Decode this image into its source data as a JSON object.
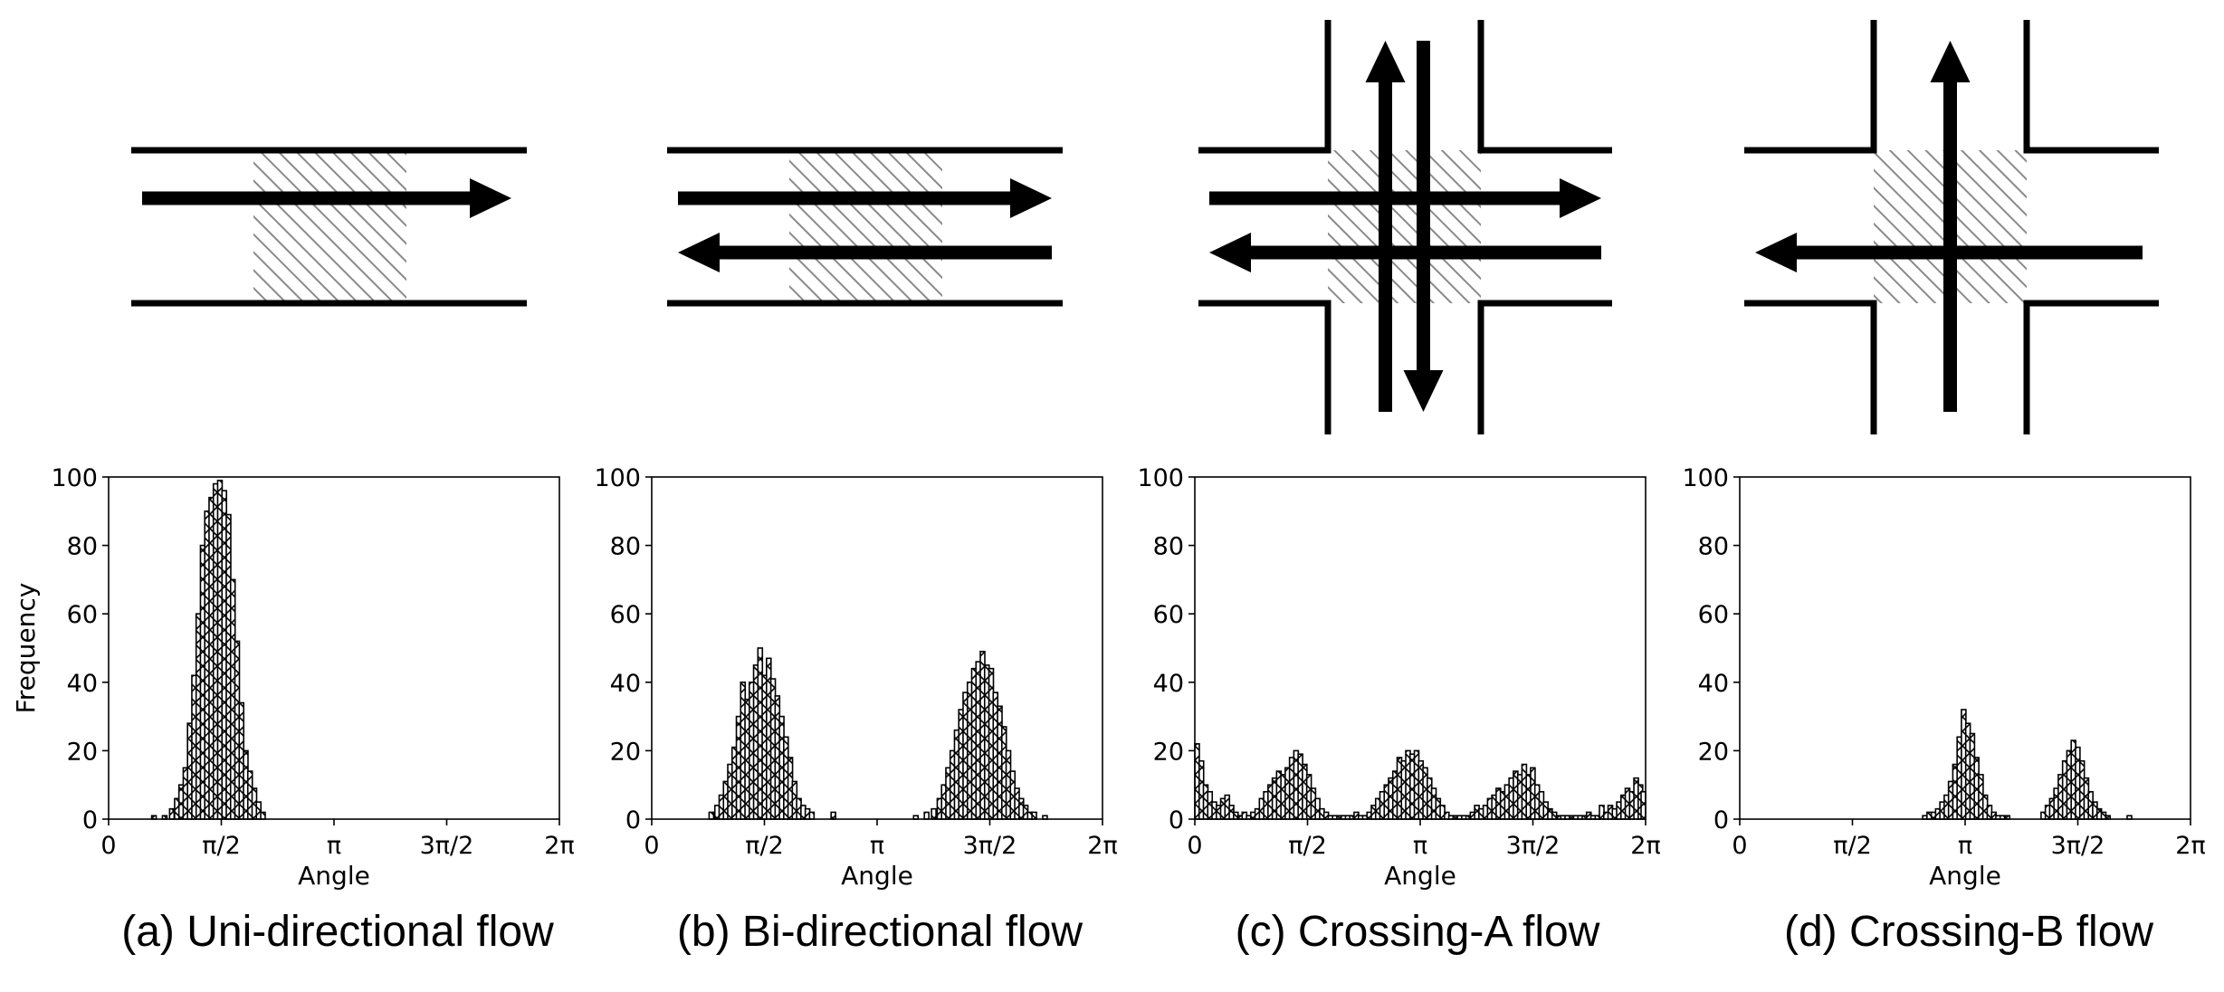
{
  "captions": [
    "(a) Uni-directional flow",
    "(b) Bi-directional flow",
    "(c) Crossing-A flow",
    "(d) Crossing-B flow"
  ],
  "diagrams": [
    {
      "type": "corridor",
      "arrows": [
        "right"
      ]
    },
    {
      "type": "corridor",
      "arrows": [
        "right",
        "left"
      ]
    },
    {
      "type": "crossing",
      "arrows": [
        "right",
        "left",
        "up",
        "down"
      ]
    },
    {
      "type": "crossing",
      "arrows": [
        "left",
        "up"
      ]
    }
  ],
  "chart_data": [
    {
      "type": "histogram",
      "title": "",
      "xlabel": "Angle",
      "ylabel": "Frequency",
      "xlim": [
        0,
        6.2832
      ],
      "ylim": [
        0,
        100
      ],
      "xticks": [
        "0",
        "π/2",
        "π",
        "3π/2",
        "2π"
      ],
      "yticks": [
        "0",
        "20",
        "40",
        "60",
        "80",
        "100"
      ],
      "bin_width": 0.0628,
      "bins": [
        {
          "x": 0.6,
          "y": 1
        },
        {
          "x": 0.75,
          "y": 1
        },
        {
          "x": 0.85,
          "y": 3
        },
        {
          "x": 0.92,
          "y": 6
        },
        {
          "x": 0.98,
          "y": 10
        },
        {
          "x": 1.04,
          "y": 15
        },
        {
          "x": 1.1,
          "y": 28
        },
        {
          "x": 1.16,
          "y": 42
        },
        {
          "x": 1.22,
          "y": 60
        },
        {
          "x": 1.28,
          "y": 80
        },
        {
          "x": 1.34,
          "y": 90
        },
        {
          "x": 1.4,
          "y": 94
        },
        {
          "x": 1.46,
          "y": 98
        },
        {
          "x": 1.52,
          "y": 99
        },
        {
          "x": 1.58,
          "y": 96
        },
        {
          "x": 1.64,
          "y": 89
        },
        {
          "x": 1.7,
          "y": 70
        },
        {
          "x": 1.76,
          "y": 52
        },
        {
          "x": 1.82,
          "y": 34
        },
        {
          "x": 1.88,
          "y": 20
        },
        {
          "x": 1.94,
          "y": 14
        },
        {
          "x": 2.0,
          "y": 9
        },
        {
          "x": 2.06,
          "y": 5
        },
        {
          "x": 2.12,
          "y": 2
        }
      ]
    },
    {
      "type": "histogram",
      "title": "",
      "xlabel": "Angle",
      "ylabel": "",
      "xlim": [
        0,
        6.2832
      ],
      "ylim": [
        0,
        100
      ],
      "xticks": [
        "0",
        "π/2",
        "π",
        "3π/2",
        "2π"
      ],
      "yticks": [
        "0",
        "20",
        "40",
        "60",
        "80",
        "100"
      ],
      "bin_width": 0.0628,
      "bins": [
        {
          "x": 0.8,
          "y": 2
        },
        {
          "x": 0.88,
          "y": 4
        },
        {
          "x": 0.94,
          "y": 7
        },
        {
          "x": 1.0,
          "y": 11
        },
        {
          "x": 1.06,
          "y": 16
        },
        {
          "x": 1.12,
          "y": 21
        },
        {
          "x": 1.18,
          "y": 30
        },
        {
          "x": 1.24,
          "y": 40
        },
        {
          "x": 1.3,
          "y": 35
        },
        {
          "x": 1.36,
          "y": 40
        },
        {
          "x": 1.42,
          "y": 45
        },
        {
          "x": 1.48,
          "y": 50
        },
        {
          "x": 1.54,
          "y": 42
        },
        {
          "x": 1.6,
          "y": 47
        },
        {
          "x": 1.66,
          "y": 41
        },
        {
          "x": 1.72,
          "y": 36
        },
        {
          "x": 1.78,
          "y": 30
        },
        {
          "x": 1.84,
          "y": 24
        },
        {
          "x": 1.9,
          "y": 18
        },
        {
          "x": 1.96,
          "y": 11
        },
        {
          "x": 2.02,
          "y": 6
        },
        {
          "x": 2.08,
          "y": 4
        },
        {
          "x": 2.14,
          "y": 3
        },
        {
          "x": 2.2,
          "y": 2
        },
        {
          "x": 2.5,
          "y": 2
        },
        {
          "x": 3.65,
          "y": 1
        },
        {
          "x": 3.8,
          "y": 2
        },
        {
          "x": 3.9,
          "y": 3
        },
        {
          "x": 3.98,
          "y": 6
        },
        {
          "x": 4.04,
          "y": 10
        },
        {
          "x": 4.1,
          "y": 15
        },
        {
          "x": 4.16,
          "y": 20
        },
        {
          "x": 4.22,
          "y": 26
        },
        {
          "x": 4.28,
          "y": 32
        },
        {
          "x": 4.34,
          "y": 37
        },
        {
          "x": 4.4,
          "y": 40
        },
        {
          "x": 4.46,
          "y": 44
        },
        {
          "x": 4.52,
          "y": 46
        },
        {
          "x": 4.58,
          "y": 49
        },
        {
          "x": 4.64,
          "y": 45
        },
        {
          "x": 4.7,
          "y": 44
        },
        {
          "x": 4.76,
          "y": 37
        },
        {
          "x": 4.82,
          "y": 33
        },
        {
          "x": 4.88,
          "y": 27
        },
        {
          "x": 4.94,
          "y": 20
        },
        {
          "x": 5.0,
          "y": 14
        },
        {
          "x": 5.06,
          "y": 9
        },
        {
          "x": 5.12,
          "y": 6
        },
        {
          "x": 5.18,
          "y": 4
        },
        {
          "x": 5.24,
          "y": 2
        },
        {
          "x": 5.3,
          "y": 2
        },
        {
          "x": 5.45,
          "y": 1
        }
      ]
    },
    {
      "type": "histogram",
      "title": "",
      "xlabel": "Angle",
      "ylabel": "",
      "xlim": [
        0,
        6.2832
      ],
      "ylim": [
        0,
        100
      ],
      "xticks": [
        "0",
        "π/2",
        "π",
        "3π/2",
        "2π"
      ],
      "yticks": [
        "0",
        "20",
        "40",
        "60",
        "80",
        "100"
      ],
      "bin_width": 0.0628,
      "bins": [
        {
          "x": 0.0,
          "y": 22
        },
        {
          "x": 0.06,
          "y": 17
        },
        {
          "x": 0.12,
          "y": 10
        },
        {
          "x": 0.18,
          "y": 8
        },
        {
          "x": 0.24,
          "y": 5
        },
        {
          "x": 0.3,
          "y": 4
        },
        {
          "x": 0.36,
          "y": 6
        },
        {
          "x": 0.42,
          "y": 7
        },
        {
          "x": 0.48,
          "y": 4
        },
        {
          "x": 0.54,
          "y": 2
        },
        {
          "x": 0.6,
          "y": 1
        },
        {
          "x": 0.66,
          "y": 2
        },
        {
          "x": 0.72,
          "y": 1
        },
        {
          "x": 0.78,
          "y": 2
        },
        {
          "x": 0.84,
          "y": 3
        },
        {
          "x": 0.9,
          "y": 6
        },
        {
          "x": 0.96,
          "y": 8
        },
        {
          "x": 1.02,
          "y": 10
        },
        {
          "x": 1.08,
          "y": 12
        },
        {
          "x": 1.14,
          "y": 14
        },
        {
          "x": 1.2,
          "y": 13
        },
        {
          "x": 1.26,
          "y": 15
        },
        {
          "x": 1.32,
          "y": 18
        },
        {
          "x": 1.38,
          "y": 20
        },
        {
          "x": 1.44,
          "y": 19
        },
        {
          "x": 1.5,
          "y": 16
        },
        {
          "x": 1.56,
          "y": 13
        },
        {
          "x": 1.62,
          "y": 9
        },
        {
          "x": 1.68,
          "y": 6
        },
        {
          "x": 1.74,
          "y": 3
        },
        {
          "x": 1.8,
          "y": 2
        },
        {
          "x": 1.86,
          "y": 1
        },
        {
          "x": 1.92,
          "y": 1
        },
        {
          "x": 1.98,
          "y": 1
        },
        {
          "x": 2.04,
          "y": 1
        },
        {
          "x": 2.1,
          "y": 1
        },
        {
          "x": 2.16,
          "y": 1
        },
        {
          "x": 2.22,
          "y": 2
        },
        {
          "x": 2.28,
          "y": 1
        },
        {
          "x": 2.34,
          "y": 1
        },
        {
          "x": 2.4,
          "y": 2
        },
        {
          "x": 2.46,
          "y": 4
        },
        {
          "x": 2.52,
          "y": 6
        },
        {
          "x": 2.58,
          "y": 8
        },
        {
          "x": 2.64,
          "y": 10
        },
        {
          "x": 2.7,
          "y": 12
        },
        {
          "x": 2.76,
          "y": 14
        },
        {
          "x": 2.82,
          "y": 18
        },
        {
          "x": 2.88,
          "y": 17
        },
        {
          "x": 2.94,
          "y": 20
        },
        {
          "x": 3.0,
          "y": 19
        },
        {
          "x": 3.06,
          "y": 20
        },
        {
          "x": 3.12,
          "y": 17
        },
        {
          "x": 3.18,
          "y": 15
        },
        {
          "x": 3.24,
          "y": 12
        },
        {
          "x": 3.3,
          "y": 9
        },
        {
          "x": 3.36,
          "y": 6
        },
        {
          "x": 3.42,
          "y": 4
        },
        {
          "x": 3.48,
          "y": 2
        },
        {
          "x": 3.54,
          "y": 1
        },
        {
          "x": 3.6,
          "y": 1
        },
        {
          "x": 3.66,
          "y": 1
        },
        {
          "x": 3.72,
          "y": 1
        },
        {
          "x": 3.78,
          "y": 1
        },
        {
          "x": 3.84,
          "y": 2
        },
        {
          "x": 3.9,
          "y": 4
        },
        {
          "x": 3.96,
          "y": 3
        },
        {
          "x": 4.02,
          "y": 4
        },
        {
          "x": 4.08,
          "y": 6
        },
        {
          "x": 4.14,
          "y": 7
        },
        {
          "x": 4.2,
          "y": 9
        },
        {
          "x": 4.26,
          "y": 8
        },
        {
          "x": 4.32,
          "y": 10
        },
        {
          "x": 4.38,
          "y": 12
        },
        {
          "x": 4.44,
          "y": 14
        },
        {
          "x": 4.5,
          "y": 13
        },
        {
          "x": 4.56,
          "y": 16
        },
        {
          "x": 4.62,
          "y": 13
        },
        {
          "x": 4.68,
          "y": 15
        },
        {
          "x": 4.74,
          "y": 10
        },
        {
          "x": 4.8,
          "y": 8
        },
        {
          "x": 4.86,
          "y": 5
        },
        {
          "x": 4.92,
          "y": 3
        },
        {
          "x": 4.98,
          "y": 2
        },
        {
          "x": 5.04,
          "y": 1
        },
        {
          "x": 5.1,
          "y": 1
        },
        {
          "x": 5.16,
          "y": 1
        },
        {
          "x": 5.22,
          "y": 1
        },
        {
          "x": 5.28,
          "y": 1
        },
        {
          "x": 5.34,
          "y": 1
        },
        {
          "x": 5.4,
          "y": 1
        },
        {
          "x": 5.46,
          "y": 2
        },
        {
          "x": 5.52,
          "y": 1
        },
        {
          "x": 5.58,
          "y": 1
        },
        {
          "x": 5.64,
          "y": 4
        },
        {
          "x": 5.7,
          "y": 2
        },
        {
          "x": 5.76,
          "y": 4
        },
        {
          "x": 5.82,
          "y": 3
        },
        {
          "x": 5.88,
          "y": 5
        },
        {
          "x": 5.94,
          "y": 7
        },
        {
          "x": 6.0,
          "y": 9
        },
        {
          "x": 6.06,
          "y": 8
        },
        {
          "x": 6.12,
          "y": 12
        },
        {
          "x": 6.18,
          "y": 10
        },
        {
          "x": 6.22,
          "y": 8
        }
      ]
    },
    {
      "type": "histogram",
      "title": "",
      "xlabel": "Angle",
      "ylabel": "",
      "xlim": [
        0,
        6.2832
      ],
      "ylim": [
        0,
        100
      ],
      "xticks": [
        "0",
        "π/2",
        "π",
        "3π/2",
        "2π"
      ],
      "yticks": [
        "0",
        "20",
        "40",
        "60",
        "80",
        "100"
      ],
      "bin_width": 0.0628,
      "bins": [
        {
          "x": 2.55,
          "y": 1
        },
        {
          "x": 2.61,
          "y": 2
        },
        {
          "x": 2.67,
          "y": 2
        },
        {
          "x": 2.73,
          "y": 3
        },
        {
          "x": 2.79,
          "y": 5
        },
        {
          "x": 2.85,
          "y": 7
        },
        {
          "x": 2.91,
          "y": 11
        },
        {
          "x": 2.97,
          "y": 16
        },
        {
          "x": 3.03,
          "y": 24
        },
        {
          "x": 3.09,
          "y": 32
        },
        {
          "x": 3.15,
          "y": 28
        },
        {
          "x": 3.21,
          "y": 25
        },
        {
          "x": 3.27,
          "y": 18
        },
        {
          "x": 3.33,
          "y": 13
        },
        {
          "x": 3.39,
          "y": 7
        },
        {
          "x": 3.45,
          "y": 4
        },
        {
          "x": 3.51,
          "y": 2
        },
        {
          "x": 3.57,
          "y": 1
        },
        {
          "x": 3.63,
          "y": 1
        },
        {
          "x": 3.7,
          "y": 1
        },
        {
          "x": 4.2,
          "y": 2
        },
        {
          "x": 4.26,
          "y": 4
        },
        {
          "x": 4.32,
          "y": 6
        },
        {
          "x": 4.38,
          "y": 9
        },
        {
          "x": 4.44,
          "y": 13
        },
        {
          "x": 4.5,
          "y": 17
        },
        {
          "x": 4.56,
          "y": 20
        },
        {
          "x": 4.62,
          "y": 23
        },
        {
          "x": 4.68,
          "y": 21
        },
        {
          "x": 4.74,
          "y": 17
        },
        {
          "x": 4.8,
          "y": 12
        },
        {
          "x": 4.86,
          "y": 8
        },
        {
          "x": 4.92,
          "y": 5
        },
        {
          "x": 4.98,
          "y": 3
        },
        {
          "x": 5.04,
          "y": 2
        },
        {
          "x": 5.1,
          "y": 1
        },
        {
          "x": 5.4,
          "y": 1
        }
      ]
    }
  ]
}
